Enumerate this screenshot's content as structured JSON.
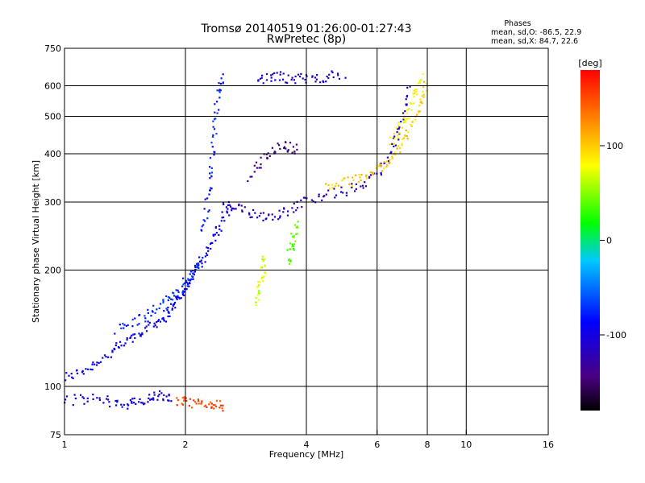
{
  "chart_data": {
    "type": "scatter",
    "title": "Tromsø 20140519 01:26:00-01:27:43",
    "subtitle": "RwPretec (8p)",
    "xlabel": "Frequency [MHz]",
    "ylabel": "Stationary phase Virtual Height [km]",
    "x_scale": "log",
    "y_scale": "log",
    "xlim": [
      1,
      16
    ],
    "ylim": [
      75,
      750
    ],
    "x_ticks": [
      "1",
      "2",
      "4",
      "6",
      "8",
      "10",
      "16"
    ],
    "y_ticks": [
      "75",
      "100",
      "200",
      "300",
      "400",
      "500",
      "600",
      "750"
    ],
    "grid": true,
    "colorbar": {
      "label": "[deg]",
      "range": [
        -180,
        180
      ],
      "ticks": [
        "100",
        "0",
        "-100"
      ]
    },
    "phase_header": {
      "heading": "Phases",
      "line_o": "mean, sd,O:  -86.5, 22.9",
      "line_x": "mean, sd,X:  84.7, 22.6"
    },
    "traces": [
      {
        "x": [
          1.0,
          1.15,
          1.3,
          1.45,
          1.6,
          1.75,
          1.85,
          1.95,
          2.05,
          2.15,
          2.3,
          2.45,
          2.6
        ],
        "y": [
          105,
          112,
          122,
          132,
          142,
          150,
          160,
          172,
          188,
          205,
          230,
          262,
          300
        ],
        "phase": -95
      },
      {
        "x": [
          1.35,
          1.55,
          1.75,
          1.9,
          2.05,
          2.2
        ],
        "y": [
          140,
          150,
          162,
          175,
          192,
          215
        ],
        "phase": -75
      },
      {
        "x": [
          2.2,
          2.3,
          2.35,
          2.4,
          2.5
        ],
        "y": [
          250,
          320,
          420,
          550,
          640
        ],
        "phase": -75
      },
      {
        "x": [
          1.0,
          1.2,
          1.4,
          1.55,
          1.7,
          1.85
        ],
        "y": [
          92,
          93,
          90,
          91,
          95,
          92
        ],
        "phase": -100
      },
      {
        "x": [
          2.5,
          2.8,
          3.2,
          3.6,
          4.2,
          5.0,
          5.8,
          6.4,
          6.9,
          7.2
        ],
        "y": [
          295,
          285,
          275,
          285,
          310,
          320,
          340,
          390,
          470,
          600
        ],
        "phase": -120
      },
      {
        "x": [
          2.9,
          3.2,
          3.5,
          3.8
        ],
        "y": [
          350,
          400,
          420,
          410
        ],
        "phase": -140
      },
      {
        "x": [
          3.0,
          3.4,
          3.8,
          4.3,
          5.0
        ],
        "y": [
          620,
          635,
          625,
          630,
          640
        ],
        "phase": -110
      },
      {
        "x": [
          4.5,
          5.2,
          5.9,
          6.5,
          7.1,
          7.6,
          8.0
        ],
        "y": [
          330,
          340,
          360,
          390,
          440,
          520,
          630
        ],
        "phase": 100
      },
      {
        "x": [
          6.5,
          7.0,
          7.4,
          7.8
        ],
        "y": [
          430,
          480,
          560,
          640
        ],
        "phase": 80
      },
      {
        "x": [
          3.0,
          3.1,
          3.15
        ],
        "y": [
          165,
          190,
          215
        ],
        "phase": 65
      },
      {
        "x": [
          3.6,
          3.7,
          3.8
        ],
        "y": [
          210,
          240,
          265
        ],
        "phase": 40
      },
      {
        "x": [
          1.9,
          2.1,
          2.3,
          2.5
        ],
        "y": [
          92,
          90,
          90,
          89
        ],
        "phase": 150
      }
    ]
  }
}
